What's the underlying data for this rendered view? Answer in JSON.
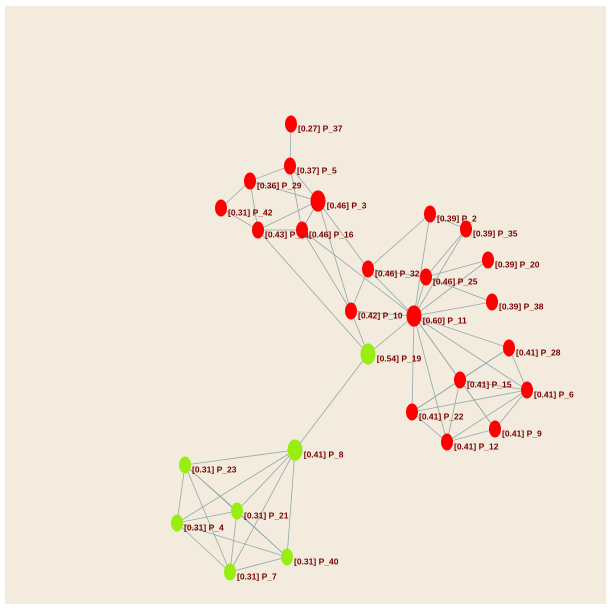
{
  "nodes": [
    {
      "label": "[0.27] P_37",
      "color": "#ff0000"
    },
    {
      "label": "[0.37] P_5",
      "color": "#ff0000"
    },
    {
      "label": "[0.36] P_29",
      "color": "#ff0000"
    },
    {
      "label": "[0.31] P_42",
      "color": "#ff0000"
    },
    {
      "label": "[0.46] P_3",
      "color": "#ff0000"
    },
    {
      "label": "[0.43] P_41",
      "color": "#ff0000"
    },
    {
      "label": "[0.46] P_16",
      "color": "#ff0000"
    },
    {
      "label": "[0.39] P_2",
      "color": "#ff0000"
    },
    {
      "label": "[0.39] P_35",
      "color": "#ff0000"
    },
    {
      "label": "[0.39] P_20",
      "color": "#ff0000"
    },
    {
      "label": "[0.46] P_32",
      "color": "#ff0000"
    },
    {
      "label": "[0.46] P_25",
      "color": "#ff0000"
    },
    {
      "label": "[0.39] P_38",
      "color": "#ff0000"
    },
    {
      "label": "[0.42] P_10",
      "color": "#ff0000"
    },
    {
      "label": "[0.60] P_11",
      "color": "#ff0000"
    },
    {
      "label": "[0.54] P_19",
      "color": "#99ee11"
    },
    {
      "label": "[0.41] P_28",
      "color": "#ff0000"
    },
    {
      "label": "[0.41] P_15",
      "color": "#ff0000"
    },
    {
      "label": "[0.41] P_6",
      "color": "#ff0000"
    },
    {
      "label": "[0.41] P_22",
      "color": "#ff0000"
    },
    {
      "label": "[0.41] P_9",
      "color": "#ff0000"
    },
    {
      "label": "[0.41] P_12",
      "color": "#ff0000"
    },
    {
      "label": "[0.41] P_8",
      "color": "#99ee11"
    },
    {
      "label": "[0.31] P_23",
      "color": "#99ee11"
    },
    {
      "label": "[0.31] P_21",
      "color": "#99ee11"
    },
    {
      "label": "[0.31] P_4",
      "color": "#99ee11"
    },
    {
      "label": "[0.31] P_40",
      "color": "#99ee11"
    },
    {
      "label": "[0.31] P_7",
      "color": "#99ee11"
    }
  ]
}
